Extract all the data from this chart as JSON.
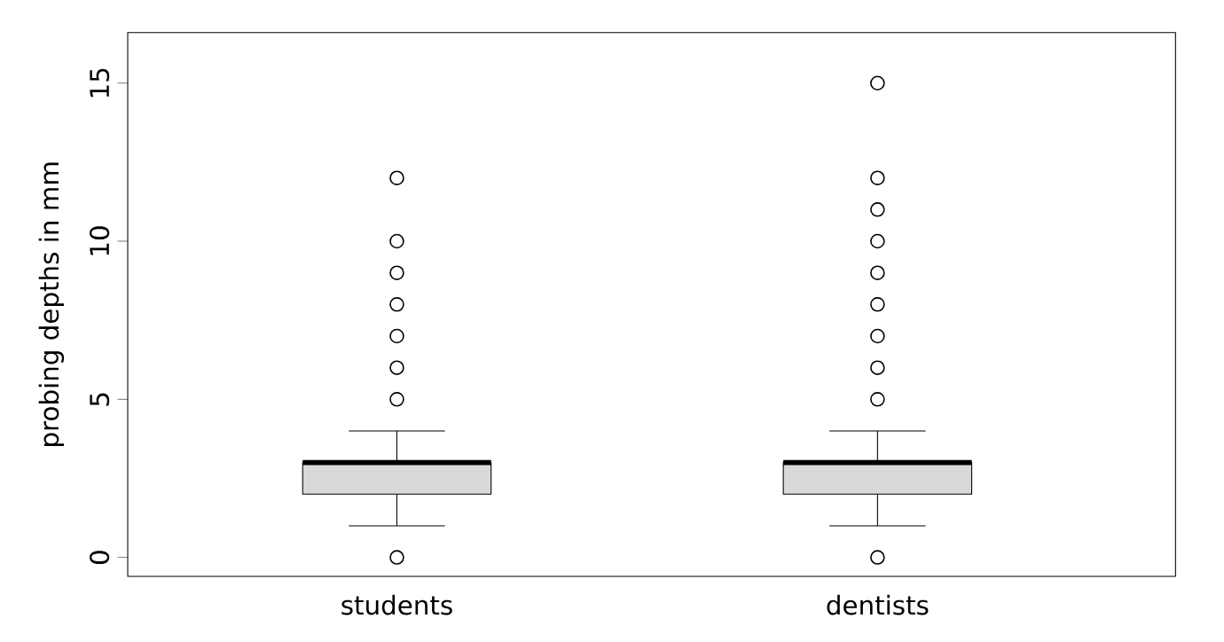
{
  "chart_data": {
    "type": "box",
    "ylabel": "probing depths in mm",
    "categories": [
      "students",
      "dentists"
    ],
    "color": "#d9d9d9",
    "marker": "circle",
    "ylim": [
      -0.6,
      16.6
    ],
    "yticks": [
      0,
      5,
      10,
      15
    ],
    "grid": false,
    "boxes": [
      {
        "low": 1,
        "q1": 2,
        "median": 3,
        "q3": 3,
        "high": 4,
        "outliers": [
          0,
          5,
          6,
          7,
          8,
          9,
          10,
          12
        ]
      },
      {
        "low": 1,
        "q1": 2,
        "median": 3,
        "q3": 3,
        "high": 4,
        "outliers": [
          0,
          5,
          6,
          7,
          8,
          9,
          10,
          11,
          12,
          15
        ]
      }
    ]
  }
}
